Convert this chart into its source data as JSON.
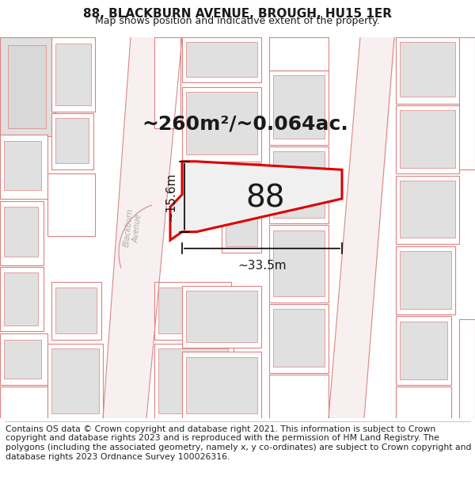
{
  "title": "88, BLACKBURN AVENUE, BROUGH, HU15 1ER",
  "subtitle": "Map shows position and indicative extent of the property.",
  "footer": "Contains OS data © Crown copyright and database right 2021. This information is subject to Crown copyright and database rights 2023 and is reproduced with the permission of HM Land Registry. The polygons (including the associated geometry, namely x, y co-ordinates) are subject to Crown copyright and database rights 2023 Ordnance Survey 100026316.",
  "area_label": "~260m²/~0.064ac.",
  "width_label": "~33.5m",
  "height_label": "~15.6m",
  "property_number": "88",
  "map_bg": "#ffffff",
  "highlight_fill": "#ffffff",
  "highlight_edge": "#dd0000",
  "building_edge": "#e08080",
  "building_fill": "#e0e0e0",
  "building_outline_fill": "#ffffff",
  "text_color": "#1a1a1a",
  "road_line_color": "#c8a0a0",
  "title_fontsize": 11,
  "subtitle_fontsize": 9,
  "footer_fontsize": 7.8,
  "area_fontsize": 18,
  "dim_fontsize": 11,
  "property_label_fontsize": 28
}
